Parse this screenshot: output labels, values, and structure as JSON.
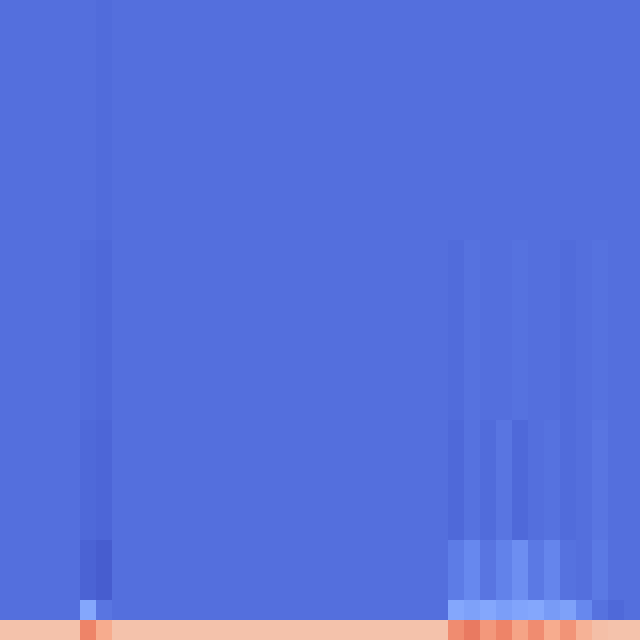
{
  "chart_data": {
    "type": "heatmap",
    "tick_labels": false,
    "color_range": [
      0,
      1
    ],
    "cells": [
      [
        0.12,
        0.12,
        0.12,
        0.12,
        0.12,
        0.12,
        0.11,
        0.12,
        0.12,
        0.12,
        0.12,
        0.12,
        0.12,
        0.12,
        0.12,
        0.12,
        0.12,
        0.12,
        0.12,
        0.12,
        0.12,
        0.12,
        0.12,
        0.12,
        0.12,
        0.12,
        0.12,
        0.12,
        0.12,
        0.12,
        0.12,
        0.12,
        0.12,
        0.12,
        0.12,
        0.12,
        0.12,
        0.12,
        0.12,
        0.12
      ],
      [
        0.12,
        0.12,
        0.12,
        0.12,
        0.12,
        0.12,
        0.11,
        0.12,
        0.12,
        0.12,
        0.12,
        0.12,
        0.12,
        0.12,
        0.12,
        0.12,
        0.12,
        0.12,
        0.12,
        0.12,
        0.12,
        0.12,
        0.12,
        0.12,
        0.12,
        0.12,
        0.12,
        0.12,
        0.12,
        0.12,
        0.12,
        0.12,
        0.12,
        0.12,
        0.12,
        0.12,
        0.12,
        0.12,
        0.12,
        0.12
      ],
      [
        0.12,
        0.12,
        0.12,
        0.12,
        0.12,
        0.12,
        0.11,
        0.12,
        0.12,
        0.12,
        0.12,
        0.12,
        0.12,
        0.12,
        0.12,
        0.12,
        0.12,
        0.12,
        0.12,
        0.12,
        0.12,
        0.12,
        0.12,
        0.12,
        0.12,
        0.12,
        0.12,
        0.12,
        0.12,
        0.12,
        0.12,
        0.12,
        0.12,
        0.12,
        0.12,
        0.12,
        0.12,
        0.12,
        0.12,
        0.12
      ],
      [
        0.12,
        0.12,
        0.12,
        0.12,
        0.12,
        0.12,
        0.11,
        0.12,
        0.12,
        0.12,
        0.12,
        0.12,
        0.12,
        0.12,
        0.12,
        0.12,
        0.12,
        0.12,
        0.12,
        0.12,
        0.12,
        0.12,
        0.12,
        0.12,
        0.12,
        0.12,
        0.12,
        0.12,
        0.12,
        0.12,
        0.12,
        0.12,
        0.12,
        0.12,
        0.12,
        0.12,
        0.12,
        0.12,
        0.12,
        0.12
      ],
      [
        0.12,
        0.12,
        0.12,
        0.12,
        0.12,
        0.12,
        0.11,
        0.12,
        0.12,
        0.12,
        0.12,
        0.12,
        0.12,
        0.12,
        0.12,
        0.12,
        0.12,
        0.12,
        0.12,
        0.12,
        0.12,
        0.12,
        0.12,
        0.12,
        0.12,
        0.12,
        0.12,
        0.12,
        0.12,
        0.12,
        0.12,
        0.12,
        0.12,
        0.12,
        0.12,
        0.12,
        0.12,
        0.12,
        0.12,
        0.12
      ],
      [
        0.12,
        0.12,
        0.12,
        0.12,
        0.12,
        0.12,
        0.11,
        0.12,
        0.12,
        0.12,
        0.12,
        0.12,
        0.12,
        0.12,
        0.12,
        0.12,
        0.12,
        0.12,
        0.12,
        0.12,
        0.12,
        0.12,
        0.12,
        0.12,
        0.12,
        0.12,
        0.12,
        0.12,
        0.12,
        0.12,
        0.12,
        0.12,
        0.12,
        0.12,
        0.12,
        0.12,
        0.12,
        0.12,
        0.12,
        0.12
      ],
      [
        0.12,
        0.12,
        0.12,
        0.12,
        0.12,
        0.12,
        0.11,
        0.12,
        0.12,
        0.12,
        0.12,
        0.12,
        0.12,
        0.12,
        0.12,
        0.12,
        0.12,
        0.12,
        0.12,
        0.12,
        0.12,
        0.12,
        0.12,
        0.12,
        0.12,
        0.12,
        0.12,
        0.12,
        0.12,
        0.12,
        0.12,
        0.12,
        0.12,
        0.12,
        0.12,
        0.12,
        0.12,
        0.12,
        0.12,
        0.12
      ],
      [
        0.12,
        0.12,
        0.12,
        0.12,
        0.12,
        0.12,
        0.11,
        0.12,
        0.12,
        0.12,
        0.12,
        0.12,
        0.12,
        0.12,
        0.12,
        0.12,
        0.12,
        0.12,
        0.12,
        0.12,
        0.12,
        0.12,
        0.12,
        0.12,
        0.12,
        0.12,
        0.12,
        0.12,
        0.12,
        0.12,
        0.12,
        0.12,
        0.12,
        0.12,
        0.12,
        0.12,
        0.12,
        0.12,
        0.12,
        0.12
      ],
      [
        0.12,
        0.12,
        0.12,
        0.12,
        0.12,
        0.12,
        0.11,
        0.12,
        0.12,
        0.12,
        0.12,
        0.12,
        0.12,
        0.12,
        0.12,
        0.12,
        0.12,
        0.12,
        0.12,
        0.12,
        0.12,
        0.12,
        0.12,
        0.12,
        0.12,
        0.12,
        0.12,
        0.12,
        0.12,
        0.12,
        0.12,
        0.12,
        0.12,
        0.12,
        0.12,
        0.12,
        0.12,
        0.12,
        0.12,
        0.12
      ],
      [
        0.12,
        0.12,
        0.12,
        0.12,
        0.12,
        0.12,
        0.11,
        0.12,
        0.12,
        0.12,
        0.12,
        0.12,
        0.12,
        0.12,
        0.12,
        0.12,
        0.12,
        0.12,
        0.12,
        0.12,
        0.12,
        0.12,
        0.12,
        0.12,
        0.12,
        0.12,
        0.12,
        0.12,
        0.12,
        0.12,
        0.12,
        0.12,
        0.12,
        0.12,
        0.12,
        0.12,
        0.12,
        0.12,
        0.12,
        0.12
      ],
      [
        0.12,
        0.12,
        0.12,
        0.12,
        0.12,
        0.12,
        0.11,
        0.12,
        0.12,
        0.12,
        0.12,
        0.12,
        0.12,
        0.12,
        0.12,
        0.12,
        0.12,
        0.12,
        0.12,
        0.12,
        0.12,
        0.12,
        0.12,
        0.12,
        0.12,
        0.12,
        0.12,
        0.12,
        0.12,
        0.12,
        0.12,
        0.12,
        0.12,
        0.12,
        0.12,
        0.12,
        0.12,
        0.12,
        0.12,
        0.12
      ],
      [
        0.12,
        0.12,
        0.12,
        0.12,
        0.12,
        0.12,
        0.11,
        0.12,
        0.12,
        0.12,
        0.12,
        0.12,
        0.12,
        0.12,
        0.12,
        0.12,
        0.12,
        0.12,
        0.12,
        0.12,
        0.12,
        0.12,
        0.12,
        0.12,
        0.12,
        0.12,
        0.12,
        0.12,
        0.12,
        0.12,
        0.12,
        0.12,
        0.12,
        0.12,
        0.12,
        0.12,
        0.12,
        0.12,
        0.12,
        0.12
      ],
      [
        0.12,
        0.12,
        0.12,
        0.12,
        0.12,
        0.11,
        0.1,
        0.12,
        0.12,
        0.12,
        0.12,
        0.12,
        0.12,
        0.12,
        0.12,
        0.12,
        0.12,
        0.12,
        0.12,
        0.12,
        0.12,
        0.12,
        0.12,
        0.12,
        0.12,
        0.12,
        0.12,
        0.12,
        0.11,
        0.13,
        0.12,
        0.12,
        0.13,
        0.12,
        0.12,
        0.11,
        0.12,
        0.13,
        0.12,
        0.12
      ],
      [
        0.12,
        0.12,
        0.12,
        0.12,
        0.12,
        0.11,
        0.1,
        0.12,
        0.12,
        0.12,
        0.12,
        0.12,
        0.12,
        0.12,
        0.12,
        0.12,
        0.12,
        0.12,
        0.12,
        0.12,
        0.12,
        0.12,
        0.12,
        0.12,
        0.12,
        0.12,
        0.12,
        0.12,
        0.11,
        0.13,
        0.12,
        0.12,
        0.13,
        0.12,
        0.12,
        0.11,
        0.12,
        0.13,
        0.12,
        0.12
      ],
      [
        0.12,
        0.12,
        0.12,
        0.12,
        0.12,
        0.11,
        0.1,
        0.12,
        0.12,
        0.12,
        0.12,
        0.12,
        0.12,
        0.12,
        0.12,
        0.12,
        0.12,
        0.12,
        0.12,
        0.12,
        0.12,
        0.12,
        0.12,
        0.12,
        0.12,
        0.12,
        0.12,
        0.12,
        0.11,
        0.13,
        0.12,
        0.12,
        0.13,
        0.12,
        0.12,
        0.11,
        0.12,
        0.13,
        0.12,
        0.12
      ],
      [
        0.12,
        0.12,
        0.12,
        0.12,
        0.12,
        0.11,
        0.1,
        0.12,
        0.12,
        0.12,
        0.12,
        0.12,
        0.12,
        0.12,
        0.12,
        0.12,
        0.12,
        0.12,
        0.12,
        0.12,
        0.12,
        0.12,
        0.12,
        0.12,
        0.12,
        0.12,
        0.12,
        0.12,
        0.11,
        0.13,
        0.12,
        0.12,
        0.13,
        0.12,
        0.12,
        0.11,
        0.12,
        0.13,
        0.12,
        0.12
      ],
      [
        0.12,
        0.12,
        0.12,
        0.12,
        0.12,
        0.11,
        0.1,
        0.12,
        0.12,
        0.12,
        0.12,
        0.12,
        0.12,
        0.12,
        0.12,
        0.12,
        0.12,
        0.12,
        0.12,
        0.12,
        0.12,
        0.12,
        0.12,
        0.12,
        0.12,
        0.12,
        0.12,
        0.12,
        0.11,
        0.13,
        0.12,
        0.12,
        0.13,
        0.12,
        0.12,
        0.11,
        0.12,
        0.13,
        0.12,
        0.12
      ],
      [
        0.12,
        0.12,
        0.12,
        0.12,
        0.12,
        0.11,
        0.1,
        0.12,
        0.12,
        0.12,
        0.12,
        0.12,
        0.12,
        0.12,
        0.12,
        0.12,
        0.12,
        0.12,
        0.12,
        0.12,
        0.12,
        0.12,
        0.12,
        0.12,
        0.12,
        0.12,
        0.12,
        0.12,
        0.11,
        0.13,
        0.12,
        0.12,
        0.13,
        0.12,
        0.12,
        0.11,
        0.12,
        0.13,
        0.12,
        0.12
      ],
      [
        0.12,
        0.12,
        0.12,
        0.12,
        0.12,
        0.11,
        0.1,
        0.12,
        0.12,
        0.12,
        0.12,
        0.12,
        0.12,
        0.12,
        0.12,
        0.12,
        0.12,
        0.12,
        0.12,
        0.12,
        0.12,
        0.12,
        0.12,
        0.12,
        0.12,
        0.12,
        0.12,
        0.12,
        0.11,
        0.13,
        0.12,
        0.12,
        0.13,
        0.12,
        0.12,
        0.11,
        0.12,
        0.13,
        0.12,
        0.12
      ],
      [
        0.12,
        0.12,
        0.12,
        0.12,
        0.12,
        0.11,
        0.1,
        0.12,
        0.12,
        0.12,
        0.12,
        0.12,
        0.12,
        0.12,
        0.12,
        0.12,
        0.12,
        0.12,
        0.12,
        0.12,
        0.12,
        0.12,
        0.12,
        0.12,
        0.12,
        0.12,
        0.12,
        0.12,
        0.11,
        0.13,
        0.12,
        0.12,
        0.13,
        0.12,
        0.12,
        0.11,
        0.12,
        0.13,
        0.12,
        0.12
      ],
      [
        0.12,
        0.12,
        0.12,
        0.12,
        0.12,
        0.11,
        0.1,
        0.12,
        0.12,
        0.12,
        0.12,
        0.12,
        0.12,
        0.12,
        0.12,
        0.12,
        0.12,
        0.12,
        0.12,
        0.12,
        0.12,
        0.12,
        0.12,
        0.12,
        0.12,
        0.12,
        0.12,
        0.12,
        0.11,
        0.13,
        0.12,
        0.12,
        0.13,
        0.12,
        0.12,
        0.11,
        0.12,
        0.13,
        0.12,
        0.12
      ],
      [
        0.12,
        0.12,
        0.12,
        0.12,
        0.12,
        0.1,
        0.09,
        0.12,
        0.12,
        0.12,
        0.12,
        0.12,
        0.12,
        0.12,
        0.12,
        0.12,
        0.12,
        0.12,
        0.12,
        0.12,
        0.12,
        0.12,
        0.12,
        0.12,
        0.12,
        0.12,
        0.12,
        0.12,
        0.1,
        0.13,
        0.11,
        0.14,
        0.1,
        0.12,
        0.13,
        0.11,
        0.12,
        0.14,
        0.12,
        0.12
      ],
      [
        0.12,
        0.12,
        0.12,
        0.12,
        0.12,
        0.1,
        0.09,
        0.12,
        0.12,
        0.12,
        0.12,
        0.12,
        0.12,
        0.12,
        0.12,
        0.12,
        0.12,
        0.12,
        0.12,
        0.12,
        0.12,
        0.12,
        0.12,
        0.12,
        0.12,
        0.12,
        0.12,
        0.12,
        0.1,
        0.13,
        0.11,
        0.14,
        0.1,
        0.12,
        0.13,
        0.11,
        0.12,
        0.14,
        0.12,
        0.12
      ],
      [
        0.12,
        0.12,
        0.12,
        0.12,
        0.12,
        0.1,
        0.09,
        0.12,
        0.12,
        0.12,
        0.12,
        0.12,
        0.12,
        0.12,
        0.12,
        0.12,
        0.12,
        0.12,
        0.12,
        0.12,
        0.12,
        0.12,
        0.12,
        0.12,
        0.12,
        0.12,
        0.12,
        0.12,
        0.1,
        0.13,
        0.11,
        0.14,
        0.1,
        0.12,
        0.13,
        0.11,
        0.12,
        0.14,
        0.12,
        0.12
      ],
      [
        0.12,
        0.12,
        0.12,
        0.12,
        0.12,
        0.1,
        0.09,
        0.12,
        0.12,
        0.12,
        0.12,
        0.12,
        0.12,
        0.12,
        0.12,
        0.12,
        0.12,
        0.12,
        0.12,
        0.12,
        0.12,
        0.12,
        0.12,
        0.12,
        0.12,
        0.12,
        0.12,
        0.12,
        0.1,
        0.13,
        0.11,
        0.14,
        0.1,
        0.12,
        0.13,
        0.11,
        0.12,
        0.14,
        0.12,
        0.12
      ],
      [
        0.12,
        0.12,
        0.12,
        0.12,
        0.12,
        0.1,
        0.09,
        0.12,
        0.12,
        0.12,
        0.12,
        0.12,
        0.12,
        0.12,
        0.12,
        0.12,
        0.12,
        0.12,
        0.12,
        0.12,
        0.12,
        0.12,
        0.12,
        0.12,
        0.12,
        0.12,
        0.12,
        0.12,
        0.1,
        0.13,
        0.11,
        0.14,
        0.1,
        0.12,
        0.13,
        0.11,
        0.12,
        0.14,
        0.12,
        0.12
      ],
      [
        0.12,
        0.12,
        0.12,
        0.12,
        0.12,
        0.1,
        0.09,
        0.12,
        0.12,
        0.12,
        0.12,
        0.12,
        0.12,
        0.12,
        0.12,
        0.12,
        0.12,
        0.12,
        0.12,
        0.12,
        0.12,
        0.12,
        0.12,
        0.12,
        0.12,
        0.12,
        0.12,
        0.12,
        0.1,
        0.13,
        0.11,
        0.14,
        0.1,
        0.12,
        0.13,
        0.11,
        0.12,
        0.14,
        0.12,
        0.12
      ],
      [
        0.12,
        0.12,
        0.12,
        0.12,
        0.12,
        0.08,
        0.06,
        0.12,
        0.12,
        0.12,
        0.12,
        0.12,
        0.12,
        0.12,
        0.12,
        0.12,
        0.12,
        0.12,
        0.12,
        0.12,
        0.12,
        0.12,
        0.12,
        0.12,
        0.12,
        0.12,
        0.12,
        0.12,
        0.16,
        0.2,
        0.14,
        0.18,
        0.22,
        0.15,
        0.19,
        0.13,
        0.12,
        0.15,
        0.12,
        0.12
      ],
      [
        0.12,
        0.12,
        0.12,
        0.12,
        0.12,
        0.08,
        0.06,
        0.12,
        0.12,
        0.12,
        0.12,
        0.12,
        0.12,
        0.12,
        0.12,
        0.12,
        0.12,
        0.12,
        0.12,
        0.12,
        0.12,
        0.12,
        0.12,
        0.12,
        0.12,
        0.12,
        0.12,
        0.12,
        0.16,
        0.2,
        0.14,
        0.18,
        0.22,
        0.15,
        0.19,
        0.13,
        0.12,
        0.15,
        0.12,
        0.12
      ],
      [
        0.12,
        0.12,
        0.12,
        0.12,
        0.12,
        0.08,
        0.06,
        0.12,
        0.12,
        0.12,
        0.12,
        0.12,
        0.12,
        0.12,
        0.12,
        0.12,
        0.12,
        0.12,
        0.12,
        0.12,
        0.12,
        0.12,
        0.12,
        0.12,
        0.12,
        0.12,
        0.12,
        0.12,
        0.16,
        0.2,
        0.14,
        0.18,
        0.22,
        0.15,
        0.19,
        0.13,
        0.12,
        0.15,
        0.12,
        0.12
      ],
      [
        0.12,
        0.12,
        0.12,
        0.12,
        0.12,
        0.3,
        0.14,
        0.12,
        0.12,
        0.12,
        0.12,
        0.12,
        0.12,
        0.12,
        0.12,
        0.12,
        0.12,
        0.12,
        0.12,
        0.12,
        0.12,
        0.12,
        0.12,
        0.12,
        0.12,
        0.12,
        0.12,
        0.12,
        0.3,
        0.28,
        0.3,
        0.27,
        0.29,
        0.3,
        0.26,
        0.28,
        0.2,
        0.13,
        0.1,
        0.12
      ],
      [
        0.63,
        0.63,
        0.63,
        0.63,
        0.63,
        0.8,
        0.7,
        0.63,
        0.63,
        0.63,
        0.63,
        0.63,
        0.63,
        0.63,
        0.63,
        0.63,
        0.63,
        0.63,
        0.63,
        0.63,
        0.63,
        0.63,
        0.63,
        0.63,
        0.63,
        0.63,
        0.63,
        0.63,
        0.78,
        0.82,
        0.75,
        0.8,
        0.72,
        0.78,
        0.7,
        0.76,
        0.68,
        0.64,
        0.63,
        0.63
      ]
    ]
  }
}
